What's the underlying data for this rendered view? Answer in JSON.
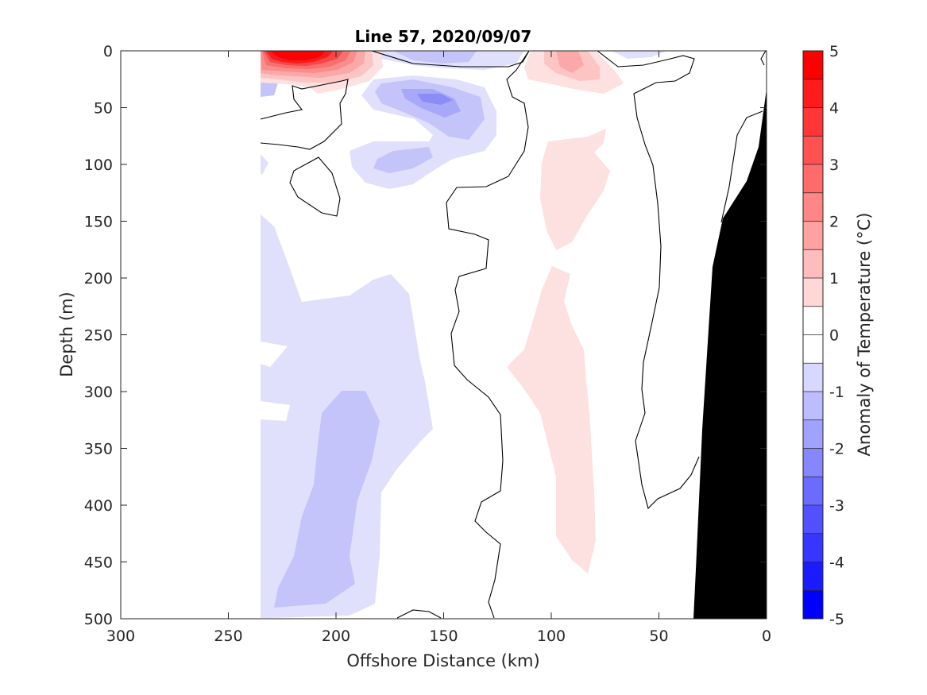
{
  "chart_data": {
    "type": "contour",
    "title": "Line 57, 2020/09/07",
    "xlabel": "Offshore Distance (km)",
    "ylabel": "Depth (m)",
    "colorbar_label": "Anomaly of Temperature (°C)",
    "x_ticks": [
      "300",
      "250",
      "200",
      "150",
      "100",
      "50",
      "0"
    ],
    "y_ticks": [
      "0",
      "50",
      "100",
      "150",
      "200",
      "250",
      "300",
      "350",
      "400",
      "450",
      "500"
    ],
    "colorbar_ticks": [
      "5",
      "4",
      "3",
      "2",
      "1",
      "0",
      "-1",
      "-2",
      "-3",
      "-4",
      "-5"
    ],
    "xlim": [
      300,
      0
    ],
    "ylim": [
      500,
      0
    ],
    "clim": [
      -5,
      5
    ],
    "contour_interval": 0.5,
    "colormap": {
      "negative_end": "#0000ff",
      "zero": "#ffffff",
      "positive_end": "#ff0000"
    },
    "bathymetry_color": "#000000",
    "data_coverage_x": [
      235,
      0
    ],
    "features": [
      {
        "label": "warm core near surface",
        "x": [
          235,
          195
        ],
        "y": [
          0,
          25
        ],
        "max_value": 4.5
      },
      {
        "label": "warm band",
        "x": [
          120,
          70
        ],
        "y": [
          0,
          470
        ],
        "value": 0.5
      },
      {
        "label": "warm patch surface",
        "x": [
          110,
          80
        ],
        "y": [
          0,
          30
        ],
        "value": 1.5
      },
      {
        "label": "cool core subsurface",
        "x": [
          185,
          135
        ],
        "y": [
          25,
          70
        ],
        "min_value": -2.5
      },
      {
        "label": "cool patch",
        "x": [
          175,
          145
        ],
        "y": [
          80,
          105
        ],
        "value": -1.5
      },
      {
        "label": "cool band deep",
        "x": [
          235,
          175
        ],
        "y": [
          200,
          500
        ],
        "value": -0.5
      },
      {
        "label": "cool core deep",
        "x": [
          230,
          180
        ],
        "y": [
          300,
          495
        ],
        "value": -1.0
      }
    ]
  }
}
